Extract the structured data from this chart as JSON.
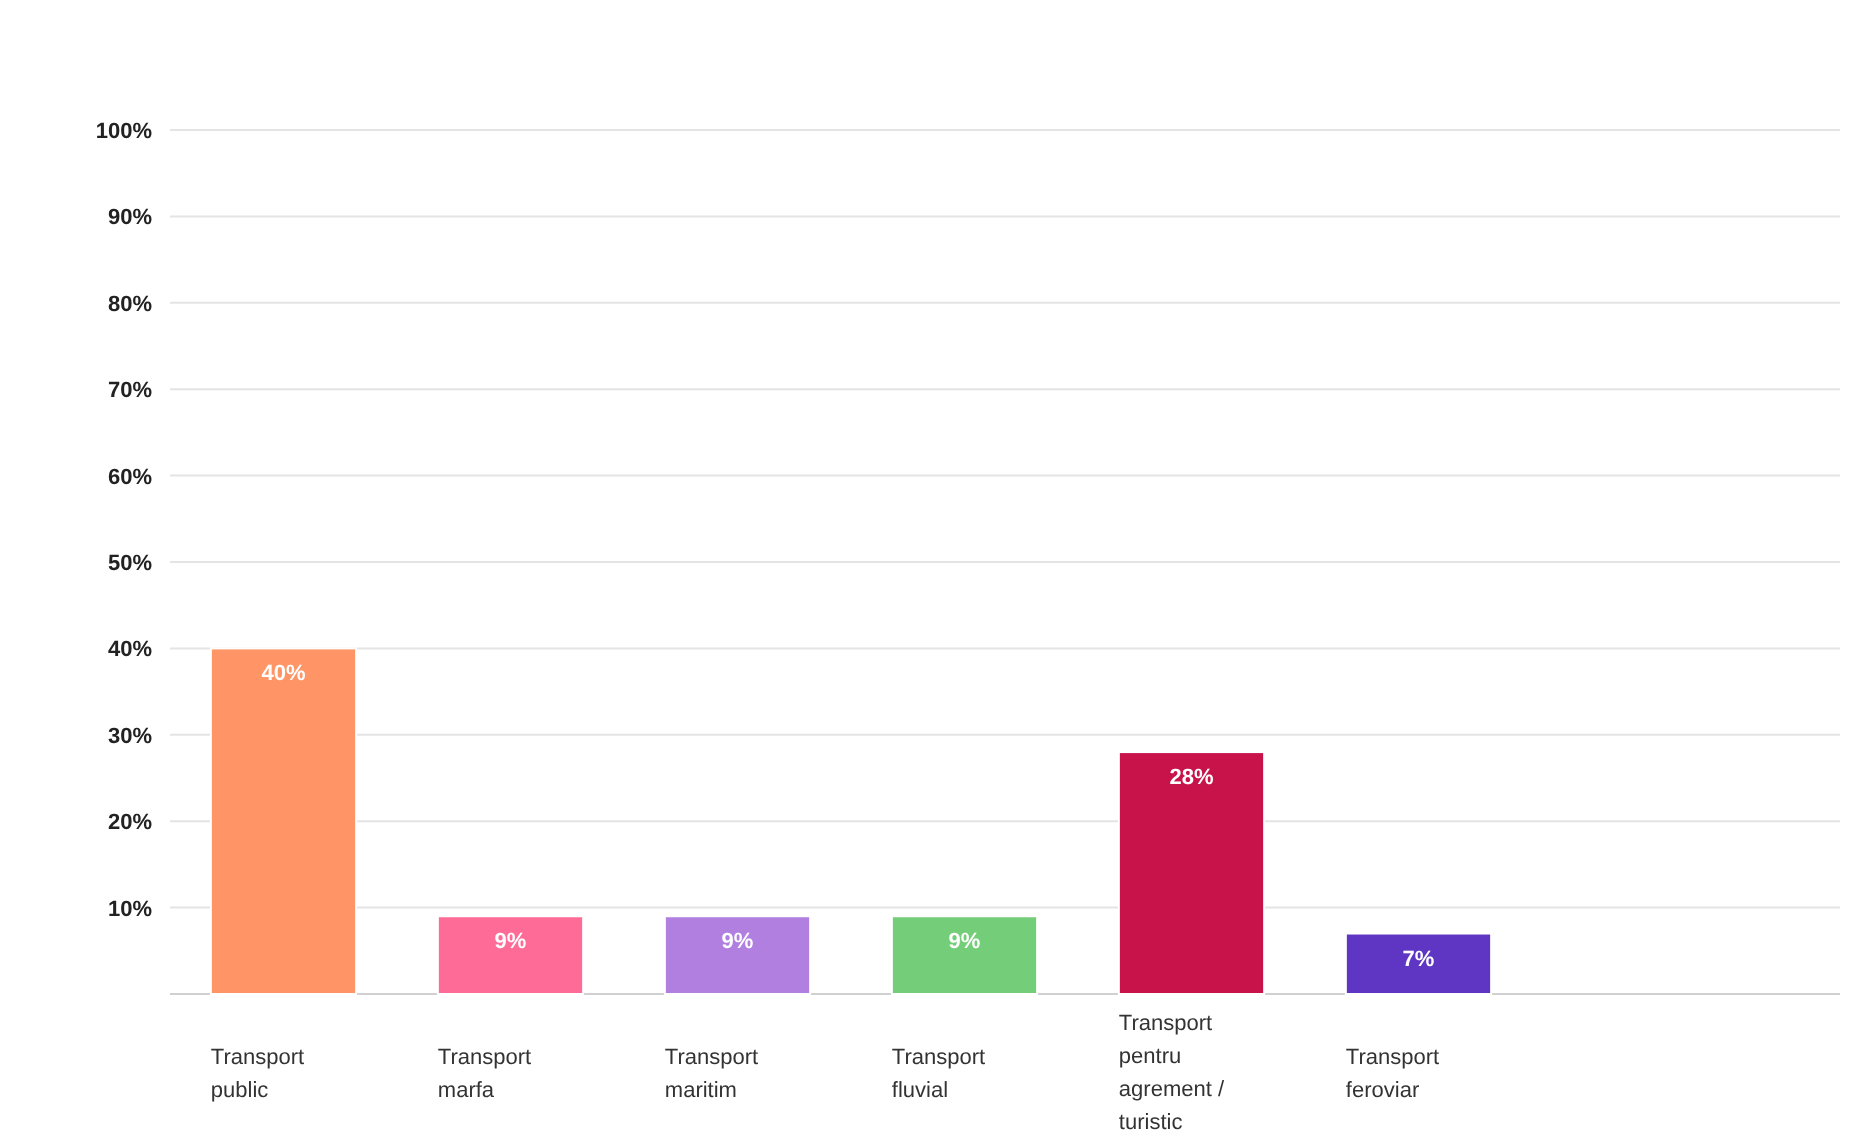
{
  "chart_data": {
    "type": "bar",
    "categories": [
      "Transport public",
      "Transport marfa",
      "Transport maritim",
      "Transport fluvial",
      "Transport pentru agrement / turistic",
      "Transport feroviar"
    ],
    "values": [
      40,
      9,
      9,
      9,
      28,
      7
    ],
    "colors": [
      "#ff9566",
      "#ff6b97",
      "#b07fe0",
      "#74cd78",
      "#c8134a",
      "#5f35c4"
    ],
    "value_labels": [
      "40%",
      "9%",
      "9%",
      "9%",
      "28%",
      "7%"
    ],
    "ylim": [
      0,
      100
    ],
    "yticks": [
      {
        "value": 0,
        "label": null
      },
      {
        "value": 10,
        "label": "10%"
      },
      {
        "value": 20,
        "label": "20%"
      },
      {
        "value": 30,
        "label": "30%"
      },
      {
        "value": 40,
        "label": "40%"
      },
      {
        "value": 50,
        "label": "50%"
      },
      {
        "value": 60,
        "label": "60%"
      },
      {
        "value": 70,
        "label": "70%"
      },
      {
        "value": 80,
        "label": "80%"
      },
      {
        "value": 90,
        "label": "90%"
      },
      {
        "value": 100,
        "label": "100%"
      }
    ],
    "grid": "y"
  }
}
